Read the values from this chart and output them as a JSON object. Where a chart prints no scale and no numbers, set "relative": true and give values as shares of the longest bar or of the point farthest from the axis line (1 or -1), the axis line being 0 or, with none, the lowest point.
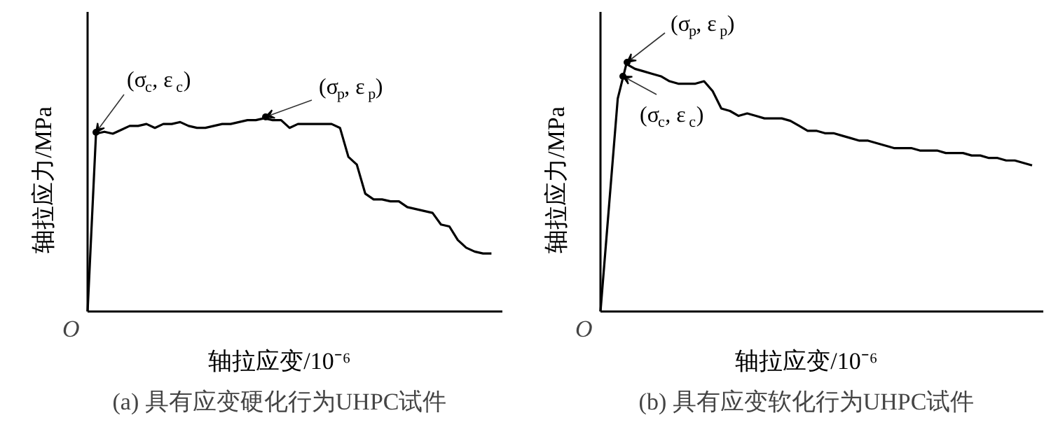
{
  "chart_data": [
    {
      "type": "line",
      "relative": true,
      "title": "(a) 具有应变硬化行为UHPC试件",
      "xlabel": "轴拉应变/10⁻⁶",
      "ylabel": "轴拉应力/MPa",
      "categories": [
        null,
        null,
        null,
        null,
        null,
        null,
        null,
        null,
        null,
        null,
        null,
        null,
        null,
        null,
        null,
        null,
        null,
        null,
        null,
        null,
        null,
        null,
        null,
        null,
        null,
        null,
        null,
        null,
        null,
        null,
        null,
        null,
        null,
        null,
        null,
        null,
        null,
        null,
        null,
        null,
        null,
        null,
        null,
        null,
        null,
        null,
        null,
        null,
        null
      ],
      "series": [
        {
          "color": "#000000",
          "values": [
            0,
            0.92,
            0.93,
            0.92,
            0.94,
            0.96,
            0.96,
            0.97,
            0.95,
            0.97,
            0.97,
            0.98,
            0.96,
            0.95,
            0.95,
            0.96,
            0.97,
            0.97,
            0.98,
            0.99,
            0.99,
            1.0,
            0.99,
            0.99,
            0.95,
            0.97,
            0.97,
            0.97,
            0.97,
            0.97,
            0.95,
            0.8,
            0.76,
            0.61,
            0.58,
            0.58,
            0.57,
            0.57,
            0.54,
            0.53,
            0.52,
            0.51,
            0.45,
            0.44,
            0.37,
            0.33,
            0.31,
            0.3,
            0.3
          ]
        }
      ],
      "annotations": [
        "O",
        "(σ$_{c}$, ε$_{c}$)",
        "(σ$_{p}$, ε$_{p}$)"
      ],
      "marker": "none",
      "line_style": "solid"
    },
    {
      "type": "line",
      "relative": true,
      "title": "(b) 具有应变软化行为UHPC试件",
      "xlabel": "轴拉应变/10⁻⁶",
      "ylabel": "轴拉应力/MPa",
      "categories": [
        null,
        null,
        null,
        null,
        null,
        null,
        null,
        null,
        null,
        null,
        null,
        null,
        null,
        null,
        null,
        null,
        null,
        null,
        null,
        null,
        null,
        null,
        null,
        null,
        null,
        null,
        null,
        null,
        null,
        null,
        null,
        null,
        null,
        null,
        null,
        null,
        null,
        null,
        null,
        null,
        null,
        null,
        null,
        null,
        null,
        null,
        null,
        null,
        null,
        null,
        null
      ],
      "series": [
        {
          "color": "#000000",
          "values": [
            0,
            0.43,
            0.86,
            1.0,
            0.98,
            0.97,
            0.96,
            0.95,
            0.93,
            0.92,
            0.92,
            0.92,
            0.93,
            0.89,
            0.82,
            0.81,
            0.79,
            0.8,
            0.79,
            0.78,
            0.78,
            0.78,
            0.77,
            0.75,
            0.73,
            0.73,
            0.72,
            0.72,
            0.71,
            0.7,
            0.69,
            0.69,
            0.68,
            0.67,
            0.66,
            0.66,
            0.66,
            0.65,
            0.65,
            0.65,
            0.64,
            0.64,
            0.64,
            0.63,
            0.63,
            0.62,
            0.62,
            0.61,
            0.61,
            0.6,
            0.59
          ]
        }
      ],
      "annotations": [
        "O",
        "(σ$_{p}$, ε$_{p}$)",
        "(σ$_{c}$, ε$_{c}$)"
      ],
      "marker": "none",
      "line_style": "solid"
    }
  ]
}
